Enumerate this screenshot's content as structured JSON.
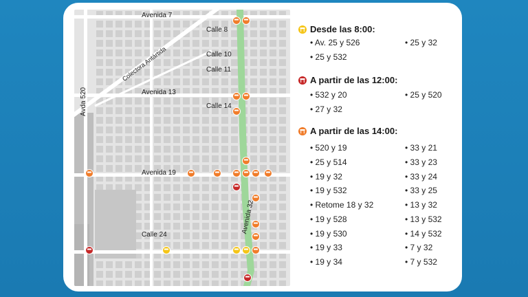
{
  "colors": {
    "background": "#1f86bf",
    "card": "#ffffff",
    "map_ground": "#e4e4e4",
    "map_blocks": "#cfcfcf",
    "map_park": "#bdbdbd",
    "avenue_green": "#9ed79a",
    "icon_yellow": "#f5c518",
    "icon_red": "#c62828",
    "icon_orange": "#f07c2a"
  },
  "map": {
    "street_labels": {
      "avenida_7": "Avenida 7",
      "calle_8": "Calle 8",
      "colectora": "Colectora Antártida",
      "calle_10": "Calle 10",
      "calle_11": "Calle 11",
      "avda_520": "Avda 520",
      "avenida_13": "Avenida 13",
      "calle_14": "Calle 14",
      "avenida_19": "Avenida 19",
      "avenida_32": "Avenida 32",
      "calle_24": "Calle 24"
    },
    "markers": {
      "yellow": "closure-8am-icon",
      "red": "closure-12pm-icon",
      "orange": "closure-14pm-icon"
    }
  },
  "schedule": {
    "from_8": {
      "heading": "Desde las 8:00:",
      "col1": [
        "Av. 25 y 526",
        "25 y 532"
      ],
      "col2": [
        "25 y 32"
      ]
    },
    "from_12": {
      "heading": "A partir de las 12:00:",
      "col1": [
        "532 y 20",
        "27 y 32"
      ],
      "col2": [
        "25 y 520"
      ]
    },
    "from_14": {
      "heading": "A partir de las 14:00:",
      "col1": [
        "520 y 19",
        "25 y 514",
        "19 y 32",
        "19 y 532",
        "Retome 18 y 32",
        "19 y 528",
        "19 y 530",
        "19 y 33",
        "19 y 34"
      ],
      "col2": [
        "33 y 21",
        "33 y 23",
        "33 y 24",
        "33 y 25",
        "13 y 32",
        "13 y 532",
        "14 y 532",
        "7 y 32",
        "7 y 532"
      ]
    }
  }
}
